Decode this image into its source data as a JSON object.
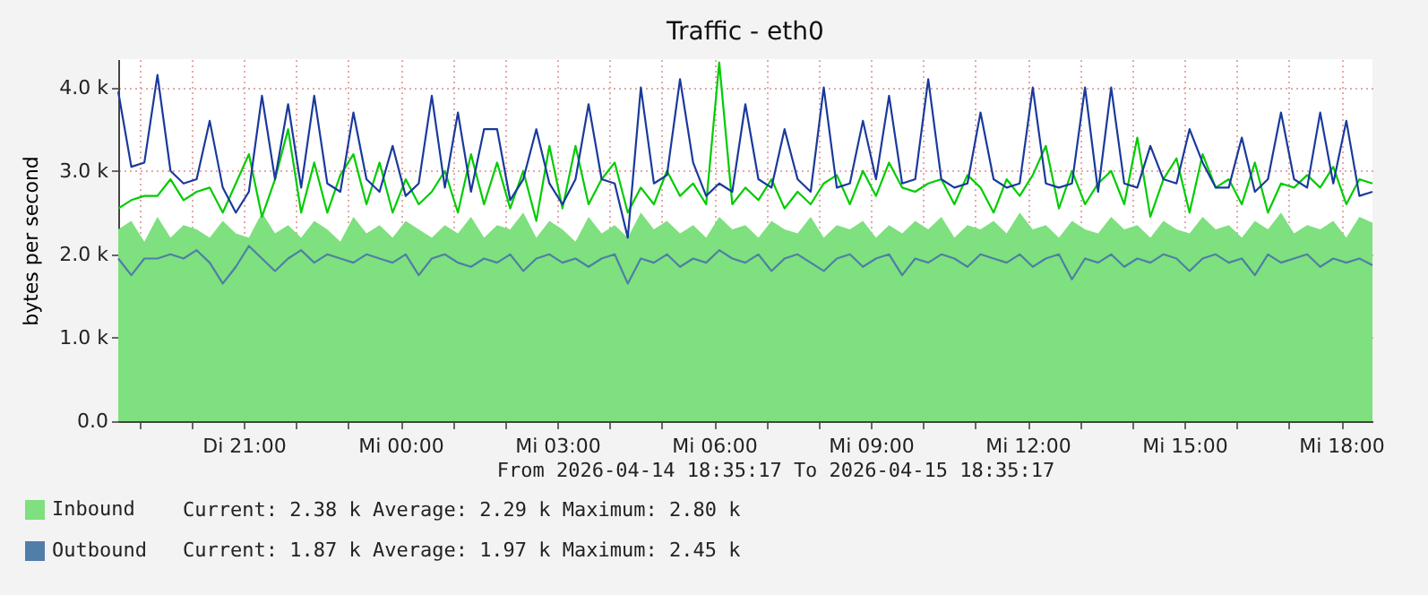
{
  "chart_data": {
    "type": "line",
    "title": "Traffic - eth0",
    "ylabel": "bytes per second",
    "x": [
      "2026-04-14T18:36",
      "2026-04-14T18:51",
      "2026-04-14T19:06",
      "2026-04-14T19:21",
      "2026-04-14T19:36",
      "2026-04-14T19:51",
      "2026-04-14T20:06",
      "2026-04-14T20:21",
      "2026-04-14T20:36",
      "2026-04-14T20:51",
      "2026-04-14T21:06",
      "2026-04-14T21:21",
      "2026-04-14T21:36",
      "2026-04-14T21:51",
      "2026-04-14T22:06",
      "2026-04-14T22:21",
      "2026-04-14T22:36",
      "2026-04-14T22:51",
      "2026-04-14T23:06",
      "2026-04-14T23:21",
      "2026-04-14T23:36",
      "2026-04-14T23:51",
      "2026-04-15T00:06",
      "2026-04-15T00:21",
      "2026-04-15T00:36",
      "2026-04-15T00:51",
      "2026-04-15T01:06",
      "2026-04-15T01:21",
      "2026-04-15T01:36",
      "2026-04-15T01:51",
      "2026-04-15T02:06",
      "2026-04-15T02:21",
      "2026-04-15T02:36",
      "2026-04-15T02:51",
      "2026-04-15T03:06",
      "2026-04-15T03:21",
      "2026-04-15T03:36",
      "2026-04-15T03:51",
      "2026-04-15T04:06",
      "2026-04-15T04:21",
      "2026-04-15T04:36",
      "2026-04-15T04:51",
      "2026-04-15T05:06",
      "2026-04-15T05:21",
      "2026-04-15T05:36",
      "2026-04-15T05:51",
      "2026-04-15T06:06",
      "2026-04-15T06:21",
      "2026-04-15T06:36",
      "2026-04-15T06:51",
      "2026-04-15T07:06",
      "2026-04-15T07:21",
      "2026-04-15T07:36",
      "2026-04-15T07:51",
      "2026-04-15T08:06",
      "2026-04-15T08:21",
      "2026-04-15T08:36",
      "2026-04-15T08:51",
      "2026-04-15T09:06",
      "2026-04-15T09:21",
      "2026-04-15T09:36",
      "2026-04-15T09:51",
      "2026-04-15T10:06",
      "2026-04-15T10:21",
      "2026-04-15T10:36",
      "2026-04-15T10:51",
      "2026-04-15T11:06",
      "2026-04-15T11:21",
      "2026-04-15T11:36",
      "2026-04-15T11:51",
      "2026-04-15T12:06",
      "2026-04-15T12:21",
      "2026-04-15T12:36",
      "2026-04-15T12:51",
      "2026-04-15T13:06",
      "2026-04-15T13:21",
      "2026-04-15T13:36",
      "2026-04-15T13:51",
      "2026-04-15T14:06",
      "2026-04-15T14:21",
      "2026-04-15T14:36",
      "2026-04-15T14:51",
      "2026-04-15T15:06",
      "2026-04-15T15:21",
      "2026-04-15T15:36",
      "2026-04-15T15:51",
      "2026-04-15T16:06",
      "2026-04-15T16:21",
      "2026-04-15T16:36",
      "2026-04-15T16:51",
      "2026-04-15T17:06",
      "2026-04-15T17:21",
      "2026-04-15T17:36",
      "2026-04-15T17:51",
      "2026-04-15T18:06",
      "2026-04-15T18:21",
      "2026-04-15T18:36"
    ],
    "series": [
      {
        "name": "Inbound",
        "type": "area",
        "color": "#7ee07e",
        "values": [
          2.3,
          2.4,
          2.15,
          2.45,
          2.2,
          2.35,
          2.3,
          2.2,
          2.4,
          2.25,
          2.2,
          2.5,
          2.25,
          2.35,
          2.2,
          2.4,
          2.3,
          2.15,
          2.45,
          2.25,
          2.35,
          2.2,
          2.4,
          2.3,
          2.2,
          2.35,
          2.25,
          2.45,
          2.2,
          2.35,
          2.3,
          2.5,
          2.2,
          2.4,
          2.3,
          2.15,
          2.45,
          2.25,
          2.35,
          2.2,
          2.5,
          2.3,
          2.4,
          2.25,
          2.35,
          2.2,
          2.45,
          2.3,
          2.35,
          2.2,
          2.4,
          2.3,
          2.25,
          2.45,
          2.2,
          2.35,
          2.3,
          2.4,
          2.2,
          2.35,
          2.25,
          2.4,
          2.3,
          2.45,
          2.2,
          2.35,
          2.3,
          2.4,
          2.25,
          2.5,
          2.3,
          2.35,
          2.2,
          2.4,
          2.3,
          2.25,
          2.45,
          2.3,
          2.35,
          2.2,
          2.4,
          2.3,
          2.25,
          2.45,
          2.3,
          2.35,
          2.2,
          2.4,
          2.3,
          2.5,
          2.25,
          2.35,
          2.3,
          2.4,
          2.2,
          2.45,
          2.38
        ]
      },
      {
        "color": "#00cc00",
        "values": [
          2.55,
          2.65,
          2.7,
          2.7,
          2.9,
          2.65,
          2.75,
          2.8,
          2.5,
          2.85,
          3.2,
          2.45,
          2.9,
          3.5,
          2.5,
          3.1,
          2.5,
          2.95,
          3.2,
          2.6,
          3.1,
          2.5,
          2.9,
          2.6,
          2.75,
          3.0,
          2.5,
          3.2,
          2.6,
          3.1,
          2.55,
          3.0,
          2.4,
          3.3,
          2.55,
          3.3,
          2.6,
          2.9,
          3.1,
          2.5,
          2.8,
          2.6,
          3.0,
          2.7,
          2.85,
          2.6,
          4.3,
          2.6,
          2.8,
          2.65,
          2.9,
          2.55,
          2.75,
          2.6,
          2.85,
          2.95,
          2.6,
          3.0,
          2.7,
          3.1,
          2.8,
          2.75,
          2.85,
          2.9,
          2.6,
          2.95,
          2.8,
          2.5,
          2.9,
          2.7,
          2.95,
          3.3,
          2.55,
          3.0,
          2.6,
          2.85,
          3.0,
          2.6,
          3.4,
          2.45,
          2.9,
          3.15,
          2.5,
          3.2,
          2.8,
          2.9,
          2.6,
          3.1,
          2.5,
          2.85,
          2.8,
          2.95,
          2.8,
          3.05,
          2.6,
          2.9,
          2.85
        ]
      },
      {
        "color": "#1a3a9c",
        "values": [
          3.95,
          3.05,
          3.1,
          4.15,
          3.0,
          2.85,
          2.9,
          3.6,
          2.8,
          2.5,
          2.75,
          3.9,
          2.9,
          3.8,
          2.8,
          3.9,
          2.85,
          2.75,
          3.7,
          2.9,
          2.75,
          3.3,
          2.7,
          2.85,
          3.9,
          2.8,
          3.7,
          2.75,
          3.5,
          3.5,
          2.65,
          2.9,
          3.5,
          2.85,
          2.6,
          2.9,
          3.8,
          2.9,
          2.85,
          2.2,
          4.0,
          2.85,
          2.95,
          4.1,
          3.1,
          2.7,
          2.85,
          2.75,
          3.8,
          2.9,
          2.8,
          3.5,
          2.9,
          2.75,
          4.0,
          2.8,
          2.85,
          3.6,
          2.9,
          3.9,
          2.85,
          2.9,
          4.1,
          2.9,
          2.8,
          2.85,
          3.7,
          2.9,
          2.8,
          2.85,
          4.0,
          2.85,
          2.8,
          2.85,
          4.0,
          2.75,
          4.0,
          2.85,
          2.8,
          3.3,
          2.9,
          2.85,
          3.5,
          3.1,
          2.8,
          2.8,
          3.4,
          2.75,
          2.9,
          3.7,
          2.9,
          2.8,
          3.7,
          2.85,
          3.6,
          2.7,
          2.75
        ]
      },
      {
        "name": "Outbound",
        "color": "#4f7ea8",
        "values": [
          1.95,
          1.75,
          1.95,
          1.95,
          2.0,
          1.95,
          2.05,
          1.9,
          1.65,
          1.85,
          2.1,
          1.95,
          1.8,
          1.95,
          2.05,
          1.9,
          2.0,
          1.95,
          1.9,
          2.0,
          1.95,
          1.9,
          2.0,
          1.75,
          1.95,
          2.0,
          1.9,
          1.85,
          1.95,
          1.9,
          2.0,
          1.8,
          1.95,
          2.0,
          1.9,
          1.95,
          1.85,
          1.95,
          2.0,
          1.65,
          1.95,
          1.9,
          2.0,
          1.85,
          1.95,
          1.9,
          2.05,
          1.95,
          1.9,
          2.0,
          1.8,
          1.95,
          2.0,
          1.9,
          1.8,
          1.95,
          2.0,
          1.85,
          1.95,
          2.0,
          1.75,
          1.95,
          1.9,
          2.0,
          1.95,
          1.85,
          2.0,
          1.95,
          1.9,
          2.0,
          1.85,
          1.95,
          2.0,
          1.7,
          1.95,
          1.9,
          2.0,
          1.85,
          1.95,
          1.9,
          2.0,
          1.95,
          1.8,
          1.95,
          2.0,
          1.9,
          1.95,
          1.75,
          2.0,
          1.9,
          1.95,
          2.0,
          1.85,
          1.95,
          1.9,
          1.95,
          1.87
        ]
      }
    ],
    "xlim": [
      "2026-04-14T18:36",
      "2026-04-15T18:36"
    ],
    "xticks": [
      {
        "value": "2026-04-14T19:00",
        "label": null
      },
      {
        "value": "2026-04-14T20:00",
        "label": null
      },
      {
        "value": "2026-04-14T21:00",
        "label": "Di 21:00"
      },
      {
        "value": "2026-04-14T22:00",
        "label": null
      },
      {
        "value": "2026-04-14T23:00",
        "label": null
      },
      {
        "value": "2026-04-15T00:00",
        "label": "Mi 00:00"
      },
      {
        "value": "2026-04-15T01:00",
        "label": null
      },
      {
        "value": "2026-04-15T02:00",
        "label": null
      },
      {
        "value": "2026-04-15T03:00",
        "label": "Mi 03:00"
      },
      {
        "value": "2026-04-15T04:00",
        "label": null
      },
      {
        "value": "2026-04-15T05:00",
        "label": null
      },
      {
        "value": "2026-04-15T06:00",
        "label": "Mi 06:00"
      },
      {
        "value": "2026-04-15T07:00",
        "label": null
      },
      {
        "value": "2026-04-15T08:00",
        "label": null
      },
      {
        "value": "2026-04-15T09:00",
        "label": "Mi 09:00"
      },
      {
        "value": "2026-04-15T10:00",
        "label": null
      },
      {
        "value": "2026-04-15T11:00",
        "label": null
      },
      {
        "value": "2026-04-15T12:00",
        "label": "Mi 12:00"
      },
      {
        "value": "2026-04-15T13:00",
        "label": null
      },
      {
        "value": "2026-04-15T14:00",
        "label": null
      },
      {
        "value": "2026-04-15T15:00",
        "label": "Mi 15:00"
      },
      {
        "value": "2026-04-15T16:00",
        "label": null
      },
      {
        "value": "2026-04-15T17:00",
        "label": null
      },
      {
        "value": "2026-04-15T18:00",
        "label": "Mi 18:00"
      }
    ],
    "ylim": [
      0,
      4.34
    ],
    "yticks": [
      {
        "value": 0,
        "label": "0.0"
      },
      {
        "value": 1,
        "label": "1.0 k"
      },
      {
        "value": 2,
        "label": "2.0 k"
      },
      {
        "value": 3,
        "label": "3.0 k"
      },
      {
        "value": 4,
        "label": "4.0 k"
      }
    ],
    "grid": true,
    "legend": "bottom left",
    "line_style": "solid",
    "annotations": [
      "From 2026-04-14 18:35:17 To 2026-04-15 18:35:17",
      "Current:    2.38 k  Average:    2.29 k  Maximum:    2.80 k",
      "Current:    1.87 k  Average:    1.97 k  Maximum:    2.45 k"
    ]
  }
}
